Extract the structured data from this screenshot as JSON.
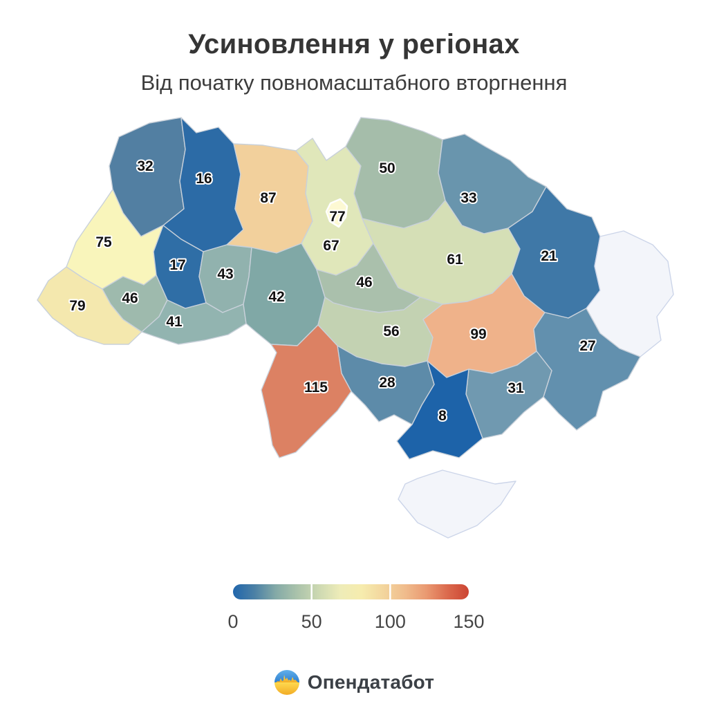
{
  "title": "Усиновлення у регіонах",
  "subtitle": "Від початку повномасштабного вторгнення",
  "logo": {
    "text": "Опендатабот",
    "colors": {
      "blue_light": "#62b0ea",
      "blue": "#2e7fd0",
      "yellow_light": "#ffd94f",
      "yellow": "#f2ac25"
    }
  },
  "chart_data": {
    "type": "choropleth",
    "title": "Усиновлення у регіонах",
    "subtitle": "Від початку повномасштабного вторгнення",
    "legend": {
      "min": 0,
      "max": 150,
      "ticks": [
        "0",
        "50",
        "100",
        "150"
      ],
      "gradient": [
        "#2166ac",
        "#4b80a5",
        "#84aaa7",
        "#abc3ab",
        "#cdd9b2",
        "#eeecb8",
        "#f6ecae",
        "#f3d69e",
        "#f0bd8d",
        "#ea9a72",
        "#db6a4d",
        "#cc4433"
      ]
    },
    "border_color": "#c9d1da",
    "no_data_color": "#f3f5fa",
    "no_data_border": "#ccd5e9",
    "regions": [
      {
        "id": "volyn",
        "value": 32,
        "color": "#527fa2"
      },
      {
        "id": "rivne",
        "value": 16,
        "color": "#2c6ba6"
      },
      {
        "id": "zhytomyr",
        "value": 87,
        "color": "#f2d09c"
      },
      {
        "id": "kyiv-oblast",
        "value": 67,
        "color": "#e0e7ba"
      },
      {
        "id": "chernihiv",
        "value": 50,
        "color": "#a5bdaa"
      },
      {
        "id": "sumy",
        "value": 33,
        "color": "#6995ad"
      },
      {
        "id": "lviv",
        "value": 75,
        "color": "#f9f5bb"
      },
      {
        "id": "ternopil",
        "value": 17,
        "color": "#2f6ea6"
      },
      {
        "id": "khmelnytskyi",
        "value": 43,
        "color": "#91b2ae"
      },
      {
        "id": "ivano-frankivsk",
        "value": 46,
        "color": "#9ebaad"
      },
      {
        "id": "zakarpattia",
        "value": 79,
        "color": "#f4e8ae"
      },
      {
        "id": "chernivtsi",
        "value": 41,
        "color": "#92b4b0"
      },
      {
        "id": "vinnytsia",
        "value": 42,
        "color": "#80a8a6"
      },
      {
        "id": "cherkasy",
        "value": 46,
        "color": "#aac0ac"
      },
      {
        "id": "poltava",
        "value": 61,
        "color": "#d5dfb6"
      },
      {
        "id": "kharkiv",
        "value": 21,
        "color": "#3f78a7"
      },
      {
        "id": "kirovohrad",
        "value": 56,
        "color": "#c3d2b2"
      },
      {
        "id": "dnipro",
        "value": 99,
        "color": "#efb28a"
      },
      {
        "id": "luhansk",
        "value": null,
        "color": null
      },
      {
        "id": "donetsk",
        "value": 27,
        "color": "#6290ae"
      },
      {
        "id": "zaporizhzhia",
        "value": 31,
        "color": "#7099b0"
      },
      {
        "id": "mykolaiv",
        "value": 28,
        "color": "#5d8ba9"
      },
      {
        "id": "kherson",
        "value": 8,
        "color": "#1d63a9"
      },
      {
        "id": "odesa",
        "value": 115,
        "color": "#dc8163"
      },
      {
        "id": "kyiv-city",
        "value": 77,
        "color": "#fdf9d3"
      },
      {
        "id": "crimea",
        "value": null,
        "color": null
      }
    ]
  }
}
